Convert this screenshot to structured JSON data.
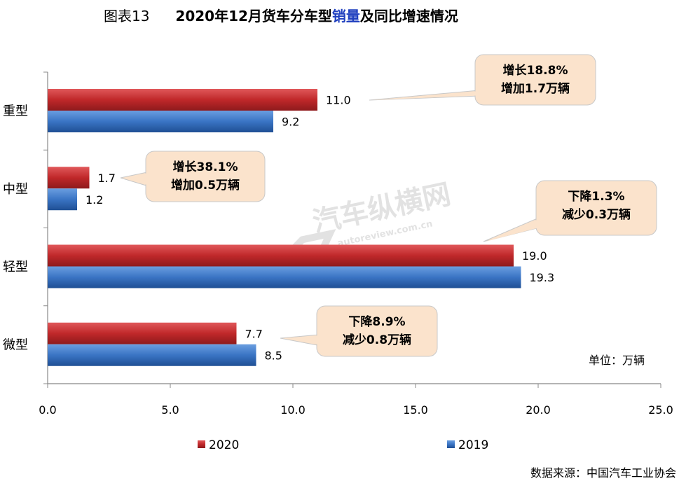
{
  "header": {
    "figure_label": "图表13",
    "title_prefix": "2020年12月货车分车型",
    "title_highlight": "销量",
    "title_suffix": "及同比增速情况",
    "highlight_color": "#1f3fbf"
  },
  "unit_note": "单位：万辆",
  "source_note": "数据来源：中国汽车工业协会",
  "watermark": {
    "brand": "汽车纵横网",
    "url": "autoreview.com.cn"
  },
  "colors": {
    "series_2020": "#c0282a",
    "series_2019": "#3a74c4",
    "callout_fill": "#fbe3cc",
    "callout_stroke": "#c8c8c8"
  },
  "callouts": [
    {
      "category": "重型",
      "line1": "增长18.8%",
      "line2": "增加1.7万辆"
    },
    {
      "category": "中型",
      "line1": "增长38.1%",
      "line2": "增加0.5万辆"
    },
    {
      "category": "轻型",
      "line1": "下降1.3%",
      "line2": "减少0.3万辆"
    },
    {
      "category": "微型",
      "line1": "下降8.9%",
      "line2": "减少0.8万辆"
    }
  ],
  "chart_data": {
    "type": "bar",
    "orientation": "horizontal",
    "categories": [
      "重型",
      "中型",
      "轻型",
      "微型"
    ],
    "series": [
      {
        "name": "2020",
        "values": [
          11.0,
          1.7,
          19.0,
          7.7
        ]
      },
      {
        "name": "2019",
        "values": [
          9.2,
          1.2,
          19.3,
          8.5
        ]
      }
    ],
    "value_labels": {
      "2020": [
        "11.0",
        "1.7",
        "19.0",
        "7.7"
      ],
      "2019": [
        "9.2",
        "1.2",
        "19.3",
        "8.5"
      ]
    },
    "xlim": [
      0,
      25
    ],
    "xticks": [
      0,
      5,
      10,
      15,
      20,
      25
    ],
    "xtick_labels": [
      "0.0",
      "5.0",
      "10.0",
      "15.0",
      "20.0",
      "25.0"
    ],
    "legend_position": "bottom",
    "grid": false
  }
}
